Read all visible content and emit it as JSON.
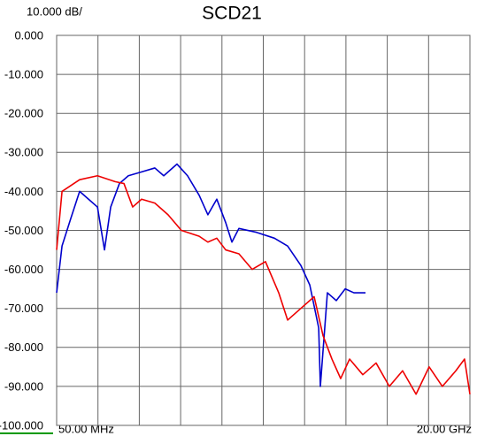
{
  "chart_data": {
    "type": "line",
    "title": "SCD21",
    "scale_label": "10.000 dB/",
    "xlim": [
      0.05,
      20
    ],
    "xticks": [
      {
        "value": 0.05,
        "label": "50.00 MHz"
      },
      {
        "value": 20,
        "label": "20.00 GHz"
      }
    ],
    "ylim": [
      -100,
      0
    ],
    "yticks": [
      {
        "value": 0,
        "label": "0.000"
      },
      {
        "value": -10,
        "label": "-10.000"
      },
      {
        "value": -20,
        "label": "-20.000"
      },
      {
        "value": -30,
        "label": "-30.000"
      },
      {
        "value": -40,
        "label": "-40.000"
      },
      {
        "value": -50,
        "label": "-50.000"
      },
      {
        "value": -60,
        "label": "-60.000"
      },
      {
        "value": -70,
        "label": "-70.000"
      },
      {
        "value": -80,
        "label": "-80.000"
      },
      {
        "value": -90,
        "label": "-90.000"
      },
      {
        "value": -100,
        "label": "-100.000"
      }
    ],
    "grid": true,
    "series": [
      {
        "color": "#0000cc",
        "x": [
          0.05,
          0.31,
          0.73,
          1.16,
          1.59,
          2.02,
          2.36,
          2.66,
          3.08,
          3.51,
          4.15,
          4.79,
          5.22,
          5.86,
          6.37,
          6.93,
          7.35,
          7.78,
          8.21,
          8.51,
          8.85,
          9.7,
          10.56,
          11.2,
          11.84,
          12.27,
          12.7,
          12.78,
          13.12,
          13.55,
          13.98,
          14.4,
          14.96
        ],
        "values": [
          -66,
          -54,
          -47,
          -40,
          -42,
          -44,
          -55,
          -44,
          -38,
          -36,
          -35,
          -34,
          -36,
          -33,
          -36,
          -41,
          -46,
          -42,
          -48,
          -53,
          -49.5,
          -50.5,
          -52,
          -54,
          -59,
          -64,
          -75,
          -90,
          -66,
          -68,
          -65,
          -66,
          -66
        ]
      },
      {
        "color": "#ee0000",
        "x": [
          0.05,
          0.31,
          1.16,
          2.02,
          2.87,
          3.3,
          3.72,
          4.15,
          4.79,
          5.43,
          6.07,
          6.93,
          7.35,
          7.78,
          8.21,
          8.85,
          9.49,
          10.13,
          10.77,
          11.2,
          11.84,
          12.48,
          12.91,
          13.34,
          13.76,
          14.19,
          14.83,
          15.47,
          16.11,
          16.75,
          17.4,
          18.03,
          18.67,
          19.32,
          19.74,
          20
        ],
        "values": [
          -55,
          -40,
          -37,
          -36,
          -37.5,
          -38,
          -44,
          -42,
          -43,
          -46,
          -50,
          -51.5,
          -53,
          -52,
          -55,
          -56,
          -60,
          -58,
          -66,
          -73,
          -70,
          -67,
          -77,
          -83,
          -88,
          -83,
          -87,
          -84,
          -90,
          -86,
          -92,
          -85,
          -90,
          -86,
          -83,
          -92
        ]
      }
    ]
  }
}
